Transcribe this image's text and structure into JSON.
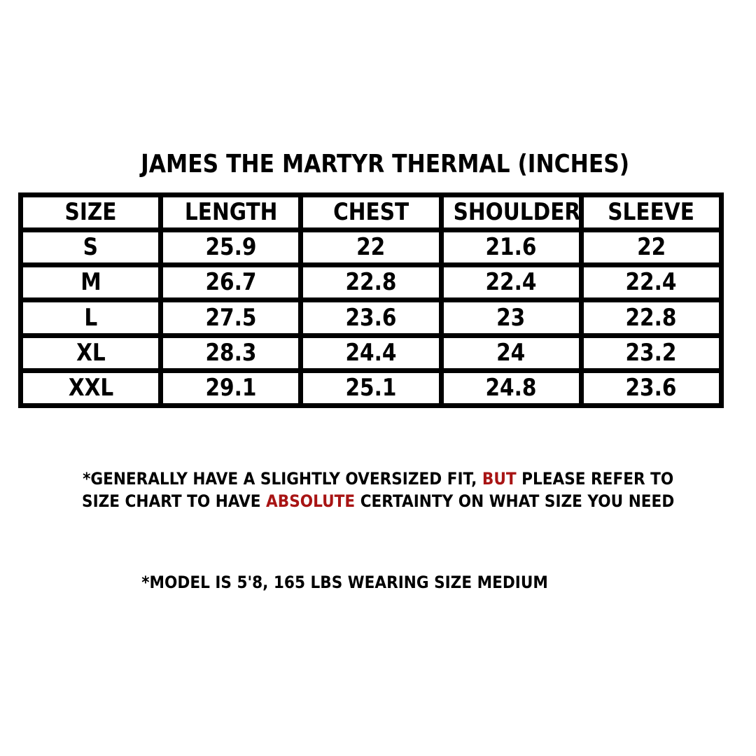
{
  "title": "JAMES THE MARTYR THERMAL (INCHES)",
  "table": {
    "headers": [
      "SIZE",
      "LENGTH",
      "CHEST",
      "SHOULDER",
      "SLEEVE"
    ],
    "rows": [
      [
        "S",
        "25.9",
        "22",
        "21.6",
        "22"
      ],
      [
        "M",
        "26.7",
        "22.8",
        "22.4",
        "22.4"
      ],
      [
        "L",
        "27.5",
        "23.6",
        "23",
        "22.8"
      ],
      [
        "XL",
        "28.3",
        "24.4",
        "24",
        "23.2"
      ],
      [
        "XXL",
        "29.1",
        "25.1",
        "24.8",
        "23.6"
      ]
    ]
  },
  "notes": {
    "fit_part1": "*GENERALLY HAVE A SLIGHTLY OVERSIZED FIT, ",
    "fit_highlight1": "BUT",
    "fit_part2": " PLEASE REFER TO",
    "fit_part3": "SIZE CHART TO HAVE ",
    "fit_highlight2": "ABSOLUTE",
    "fit_part4": " CERTAINTY ON WHAT SIZE YOU NEED",
    "model": "*MODEL IS 5'8, 165 LBS WEARING SIZE MEDIUM"
  },
  "colors": {
    "text": "#000000",
    "highlight": "#a81414",
    "border": "#000000"
  }
}
